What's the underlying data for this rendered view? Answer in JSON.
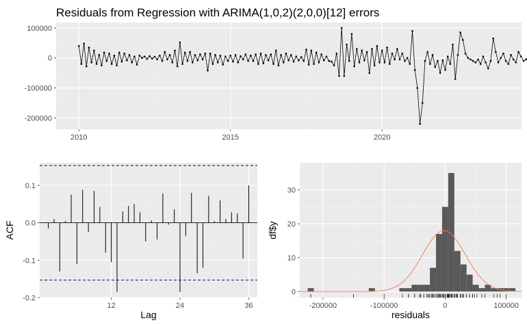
{
  "title": "Residuals from Regression with ARIMA(1,0,2)(2,0,0)[12] errors",
  "colors": {
    "panel": "#EBEBEB",
    "grid_major": "#FFFFFF",
    "grid_minor": "#F5F5F5",
    "line": "#000000",
    "ci": "#00008B",
    "hist": "#595959",
    "density": "#FF7F50"
  },
  "chart_data": [
    {
      "type": "line",
      "title": "Residuals from Regression with ARIMA(1,0,2)(2,0,0)[12] errors",
      "xlabel": "",
      "ylabel": "",
      "x_start": 2010.0,
      "x_step": 0.0833333,
      "xlim": [
        2009.25,
        2024.6
      ],
      "ylim": [
        -238000,
        118000
      ],
      "xticks": [
        2010,
        2015,
        2020
      ],
      "xtick_labels": [
        "2010",
        "2015",
        "2020"
      ],
      "yticks": [
        -200000,
        -100000,
        0,
        100000
      ],
      "ytick_labels": [
        "-200000",
        "-100000",
        "0",
        "100000"
      ],
      "grid": true,
      "values": [
        40000,
        -20000,
        48000,
        -28000,
        35000,
        -15000,
        25000,
        -20000,
        10000,
        -25000,
        18000,
        -10000,
        15000,
        -20000,
        8000,
        -25000,
        18000,
        -12000,
        15000,
        -8000,
        10000,
        -15000,
        5000,
        -22000,
        8000,
        0,
        5000,
        -3000,
        6000,
        -2000,
        4000,
        -5000,
        8000,
        -10000,
        20000,
        -5000,
        10000,
        -15000,
        25000,
        -28000,
        52000,
        -20000,
        18000,
        -10000,
        20000,
        -15000,
        10000,
        -8000,
        12000,
        -5000,
        15000,
        -42000,
        15000,
        -20000,
        10000,
        -15000,
        8000,
        -22000,
        5000,
        -10000,
        8000,
        -12000,
        10000,
        -15000,
        6000,
        -5000,
        12000,
        -10000,
        8000,
        -10000,
        12000,
        -20000,
        15000,
        -18000,
        10000,
        -8000,
        12000,
        -20000,
        25000,
        -25000,
        10000,
        -15000,
        15000,
        -8000,
        10000,
        -12000,
        5000,
        -8000,
        3000,
        -10000,
        28000,
        -22000,
        25000,
        -20000,
        18000,
        -15000,
        12000,
        -8000,
        5000,
        -10000,
        -12000,
        -25000,
        15000,
        -60000,
        100000,
        -60000,
        45000,
        -10000,
        80000,
        -28000,
        30000,
        -15000,
        25000,
        -8000,
        20000,
        -50000,
        30000,
        -25000,
        40000,
        -15000,
        25000,
        -15000,
        35000,
        -20000,
        15000,
        -5000,
        30000,
        -5000,
        15000,
        -10000,
        0,
        -20000,
        90000,
        -40000,
        -100000,
        -220000,
        -150000,
        -10000,
        20000,
        -20000,
        10000,
        -30000,
        -10000,
        -50000,
        -8000,
        -40000,
        5000,
        -20000,
        45000,
        -70000,
        10000,
        85000,
        60000,
        15000,
        0,
        -5000,
        -10000,
        -15000,
        -5000,
        -20000,
        5000,
        -15000,
        -35000,
        -10000,
        65000,
        20000,
        -15000,
        0,
        15000,
        -10000,
        -20000,
        10000,
        -5000,
        -15000,
        20000,
        5000,
        -10000,
        -5000,
        8000,
        -10000,
        -15000,
        -5000,
        10000,
        -20000,
        -5000,
        -15000,
        0,
        18000,
        -35000,
        10000
      ]
    },
    {
      "type": "bar",
      "title": "",
      "xlabel": "Lag",
      "ylabel": "ACF",
      "lags": [
        1,
        2,
        3,
        4,
        5,
        6,
        7,
        8,
        9,
        10,
        11,
        12,
        13,
        14,
        15,
        16,
        17,
        18,
        19,
        20,
        21,
        22,
        23,
        24,
        25,
        26,
        27,
        28,
        29,
        30,
        31,
        32,
        33,
        34,
        35,
        36
      ],
      "values": [
        -0.015,
        0.01,
        -0.13,
        0.005,
        0.075,
        -0.11,
        0.088,
        -0.025,
        0.085,
        0.042,
        -0.08,
        -0.105,
        -0.185,
        0.03,
        0.045,
        0.05,
        0.028,
        -0.05,
        0.006,
        -0.045,
        0.078,
        -0.005,
        0.036,
        -0.185,
        -0.035,
        0.08,
        -0.135,
        -0.12,
        0.072,
        0.005,
        0.06,
        0.01,
        0.028,
        0.025,
        -0.095,
        0.1
      ],
      "ci": 0.153,
      "xlim": [
        -0.5,
        37.5
      ],
      "ylim": [
        -0.2,
        0.16
      ],
      "xticks": [
        12,
        24,
        36
      ],
      "xtick_labels": [
        "12",
        "24",
        "36"
      ],
      "yticks": [
        -0.2,
        -0.1,
        0.0,
        0.1
      ],
      "ytick_labels": [
        "-0.2",
        "-0.1",
        "0.0",
        "0.1"
      ],
      "grid": true
    },
    {
      "type": "bar",
      "title": "",
      "xlabel": "residuals",
      "ylabel": "df$y",
      "bin_width": 10000,
      "bin_centers": [
        -220000,
        -120000,
        -70000,
        -60000,
        -50000,
        -40000,
        -30000,
        -20000,
        -10000,
        0,
        10000,
        20000,
        30000,
        40000,
        50000,
        60000,
        70000,
        80000,
        90000,
        100000,
        110000
      ],
      "counts": [
        1,
        1,
        1,
        1,
        2,
        2,
        2,
        7,
        17,
        25,
        35,
        12,
        8,
        5,
        2,
        1,
        2,
        1,
        1,
        1,
        1
      ],
      "density_mean": -2000,
      "density_sd": 35000,
      "density_peak": 18,
      "xlim": [
        -238000,
        125000
      ],
      "ylim": [
        -1.8,
        38
      ],
      "xticks": [
        -200000,
        -100000,
        0,
        100000
      ],
      "xtick_labels": [
        "-200000",
        "-100000",
        "0",
        "100000"
      ],
      "yticks": [
        0,
        10,
        20,
        30
      ],
      "ytick_labels": [
        "0",
        "10",
        "20",
        "30"
      ],
      "grid": true
    }
  ]
}
